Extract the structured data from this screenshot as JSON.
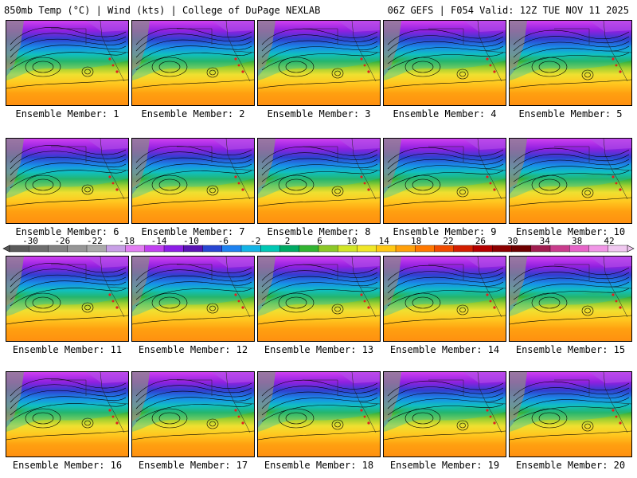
{
  "header": {
    "left": "850mb Temp (°C) | Wind (kts) | College of DuPage NEXLAB",
    "right": "06Z GEFS | F054 Valid: 12Z TUE NOV 11 2025"
  },
  "members": [
    "Ensemble Member: 1",
    "Ensemble Member: 2",
    "Ensemble Member: 3",
    "Ensemble Member: 4",
    "Ensemble Member: 5",
    "Ensemble Member: 6",
    "Ensemble Member: 7",
    "Ensemble Member: 8",
    "Ensemble Member: 9",
    "Ensemble Member: 10",
    "Ensemble Member: 11",
    "Ensemble Member: 12",
    "Ensemble Member: 13",
    "Ensemble Member: 14",
    "Ensemble Member: 15",
    "Ensemble Member: 16",
    "Ensemble Member: 17",
    "Ensemble Member: 18",
    "Ensemble Member: 19",
    "Ensemble Member: 20"
  ],
  "colorbar": {
    "labels": [
      "-30",
      "-26",
      "-22",
      "-18",
      "-14",
      "-10",
      "-6",
      "-2",
      "2",
      "6",
      "10",
      "14",
      "18",
      "22",
      "26",
      "30",
      "34",
      "38",
      "42"
    ],
    "colors": [
      "#5a5a5a",
      "#6e6e6e",
      "#828282",
      "#969696",
      "#aaaaaa",
      "#c8a0e6",
      "#e27ef2",
      "#c040f0",
      "#8c1ee6",
      "#5a14b4",
      "#2846d2",
      "#1e82f0",
      "#14b4e6",
      "#00c8b4",
      "#00aa64",
      "#32b432",
      "#8cc828",
      "#d2e628",
      "#f0e628",
      "#ffc814",
      "#ffa00a",
      "#ff7800",
      "#f04b00",
      "#d21e00",
      "#b40000",
      "#8c0000",
      "#6e0000",
      "#a01e50",
      "#c83c8c",
      "#e664c8",
      "#f096e6",
      "#f0c8f0"
    ]
  }
}
